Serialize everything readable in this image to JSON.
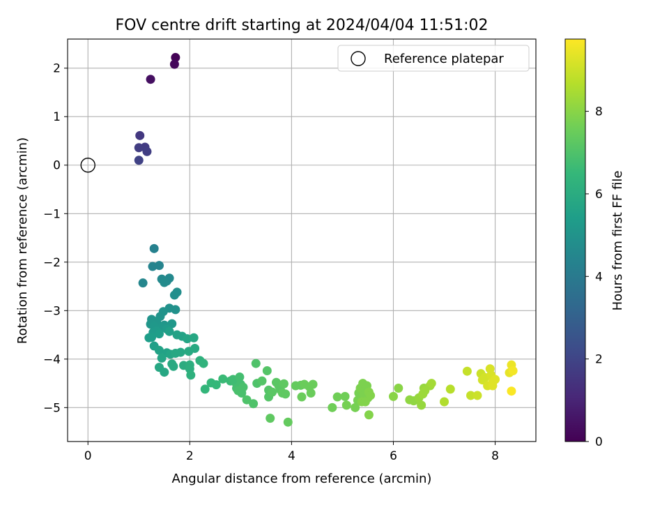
{
  "chart_data": {
    "type": "scatter",
    "title": "FOV centre drift starting at 2024/04/04 11:51:02",
    "xlabel": "Angular distance from reference (arcmin)",
    "ylabel": "Rotation from reference (arcmin)",
    "xlim": [
      -0.4,
      8.8
    ],
    "ylim": [
      -5.7,
      2.6
    ],
    "xticks": [
      0,
      2,
      4,
      6,
      8
    ],
    "xtick_labels": [
      "0",
      "2",
      "4",
      "6",
      "8"
    ],
    "yticks": [
      2,
      1,
      0,
      -1,
      -2,
      -3,
      -4,
      -5
    ],
    "ytick_labels": [
      "2",
      "1",
      "0",
      "−1",
      "−2",
      "−3",
      "−4",
      "−5"
    ],
    "grid": true,
    "legend": {
      "position": "top-right",
      "entries": [
        "Reference platepar"
      ]
    },
    "reference_point": {
      "x": 0,
      "y": 0,
      "label": "Reference platepar"
    },
    "colorbar": {
      "label": "Hours from first FF file",
      "range": [
        0,
        9.75
      ],
      "ticks": [
        0,
        2,
        4,
        6,
        8
      ],
      "tick_labels": [
        "0",
        "2",
        "4",
        "6",
        "8"
      ],
      "colormap": "viridis",
      "colors": [
        "#440154",
        "#482878",
        "#3e4a89",
        "#31688e",
        "#26828e",
        "#1f9e89",
        "#35b779",
        "#6ece58",
        "#b5de2b",
        "#fde725"
      ]
    },
    "points": [
      [
        1.72,
        2.22,
        0.05
      ],
      [
        1.7,
        2.08,
        0.2
      ],
      [
        1.23,
        1.77,
        0.4
      ],
      [
        1.02,
        0.61,
        1.6
      ],
      [
        1.12,
        0.37,
        1.7
      ],
      [
        1.0,
        0.36,
        1.75
      ],
      [
        1.16,
        0.28,
        1.8
      ],
      [
        1.0,
        0.1,
        1.9
      ],
      [
        1.3,
        -1.72,
        4.3
      ],
      [
        1.27,
        -2.09,
        4.4
      ],
      [
        1.4,
        -2.07,
        4.4
      ],
      [
        1.08,
        -2.43,
        4.5
      ],
      [
        1.6,
        -2.33,
        4.6
      ],
      [
        1.45,
        -2.35,
        4.6
      ],
      [
        1.55,
        -2.39,
        4.6
      ],
      [
        1.5,
        -2.42,
        4.7
      ],
      [
        1.75,
        -2.62,
        4.8
      ],
      [
        1.7,
        -2.68,
        4.8
      ],
      [
        1.6,
        -2.95,
        4.9
      ],
      [
        1.72,
        -2.98,
        4.9
      ],
      [
        1.48,
        -3.02,
        5.0
      ],
      [
        1.42,
        -3.12,
        5.0
      ],
      [
        1.25,
        -3.18,
        5.0
      ],
      [
        1.35,
        -3.22,
        5.1
      ],
      [
        1.23,
        -3.28,
        5.1
      ],
      [
        1.5,
        -3.3,
        5.1
      ],
      [
        1.3,
        -3.32,
        5.2
      ],
      [
        1.45,
        -3.35,
        5.2
      ],
      [
        1.65,
        -3.27,
        5.2
      ],
      [
        1.55,
        -3.38,
        5.3
      ],
      [
        1.35,
        -3.42,
        5.3
      ],
      [
        1.28,
        -3.45,
        5.3
      ],
      [
        1.4,
        -3.48,
        5.4
      ],
      [
        1.25,
        -3.55,
        5.4
      ],
      [
        1.2,
        -3.56,
        5.4
      ],
      [
        1.6,
        -3.43,
        5.5
      ],
      [
        1.75,
        -3.5,
        5.6
      ],
      [
        1.85,
        -3.53,
        5.6
      ],
      [
        1.95,
        -3.58,
        5.7
      ],
      [
        2.08,
        -3.56,
        5.8
      ],
      [
        1.3,
        -3.73,
        5.5
      ],
      [
        1.4,
        -3.82,
        5.6
      ],
      [
        1.55,
        -3.87,
        5.6
      ],
      [
        1.62,
        -3.9,
        5.7
      ],
      [
        1.72,
        -3.88,
        5.8
      ],
      [
        1.82,
        -3.86,
        5.8
      ],
      [
        1.98,
        -3.84,
        5.9
      ],
      [
        2.1,
        -3.78,
        5.9
      ],
      [
        1.45,
        -3.98,
        5.7
      ],
      [
        1.4,
        -4.17,
        5.8
      ],
      [
        1.5,
        -4.27,
        5.8
      ],
      [
        1.65,
        -4.1,
        5.9
      ],
      [
        1.68,
        -4.15,
        5.9
      ],
      [
        1.88,
        -4.13,
        6.0
      ],
      [
        2.0,
        -4.12,
        6.1
      ],
      [
        2.0,
        -4.2,
        6.1
      ],
      [
        2.02,
        -4.33,
        6.2
      ],
      [
        2.2,
        -4.03,
        6.2
      ],
      [
        2.27,
        -4.09,
        6.3
      ],
      [
        2.3,
        -4.62,
        6.4
      ],
      [
        2.42,
        -4.49,
        6.5
      ],
      [
        2.52,
        -4.53,
        6.5
      ],
      [
        2.65,
        -4.41,
        6.6
      ],
      [
        2.8,
        -4.45,
        6.6
      ],
      [
        2.85,
        -4.42,
        6.7
      ],
      [
        2.9,
        -4.48,
        6.7
      ],
      [
        2.95,
        -4.55,
        6.7
      ],
      [
        2.98,
        -4.37,
        6.8
      ],
      [
        3.0,
        -4.52,
        6.8
      ],
      [
        2.92,
        -4.6,
        6.8
      ],
      [
        2.95,
        -4.65,
        6.9
      ],
      [
        3.02,
        -4.7,
        6.9
      ],
      [
        3.05,
        -4.58,
        6.9
      ],
      [
        3.12,
        -4.84,
        7.0
      ],
      [
        3.25,
        -4.92,
        7.0
      ],
      [
        3.3,
        -4.09,
        7.0
      ],
      [
        3.32,
        -4.5,
        7.0
      ],
      [
        3.42,
        -4.45,
        7.1
      ],
      [
        3.52,
        -4.24,
        7.1
      ],
      [
        3.55,
        -4.64,
        7.1
      ],
      [
        3.55,
        -4.78,
        7.1
      ],
      [
        3.62,
        -4.68,
        7.2
      ],
      [
        3.7,
        -4.48,
        7.2
      ],
      [
        3.75,
        -4.55,
        7.2
      ],
      [
        3.78,
        -4.63,
        7.2
      ],
      [
        3.85,
        -4.51,
        7.3
      ],
      [
        3.82,
        -4.7,
        7.3
      ],
      [
        3.88,
        -4.72,
        7.3
      ],
      [
        3.58,
        -5.22,
        7.3
      ],
      [
        3.93,
        -5.3,
        7.4
      ],
      [
        4.08,
        -4.55,
        7.4
      ],
      [
        4.18,
        -4.54,
        7.4
      ],
      [
        4.25,
        -4.52,
        7.5
      ],
      [
        4.35,
        -4.57,
        7.5
      ],
      [
        4.42,
        -4.52,
        7.5
      ],
      [
        4.2,
        -4.78,
        7.5
      ],
      [
        4.38,
        -4.7,
        7.5
      ],
      [
        4.8,
        -5.0,
        7.6
      ],
      [
        4.9,
        -4.78,
        7.6
      ],
      [
        5.05,
        -4.77,
        7.6
      ],
      [
        5.08,
        -4.95,
        7.7
      ],
      [
        5.25,
        -5.0,
        7.7
      ],
      [
        5.3,
        -4.85,
        7.7
      ],
      [
        5.32,
        -4.7,
        7.7
      ],
      [
        5.35,
        -4.6,
        7.8
      ],
      [
        5.4,
        -4.5,
        7.8
      ],
      [
        5.42,
        -4.72,
        7.8
      ],
      [
        5.45,
        -4.62,
        7.8
      ],
      [
        5.48,
        -4.55,
        7.8
      ],
      [
        5.5,
        -4.8,
        7.8
      ],
      [
        5.52,
        -4.68,
        7.9
      ],
      [
        5.55,
        -4.75,
        7.9
      ],
      [
        5.38,
        -4.88,
        7.9
      ],
      [
        5.45,
        -4.88,
        7.9
      ],
      [
        5.52,
        -5.15,
        7.9
      ],
      [
        6.0,
        -4.77,
        8.0
      ],
      [
        6.1,
        -4.6,
        8.0
      ],
      [
        6.32,
        -4.84,
        8.1
      ],
      [
        6.4,
        -4.86,
        8.1
      ],
      [
        6.5,
        -4.8,
        8.2
      ],
      [
        6.55,
        -4.95,
        8.2
      ],
      [
        6.6,
        -4.6,
        8.2
      ],
      [
        6.58,
        -4.72,
        8.3
      ],
      [
        6.62,
        -4.65,
        8.3
      ],
      [
        6.72,
        -4.55,
        8.3
      ],
      [
        6.75,
        -4.5,
        8.4
      ],
      [
        7.0,
        -4.88,
        8.6
      ],
      [
        7.12,
        -4.62,
        8.7
      ],
      [
        7.45,
        -4.25,
        8.9
      ],
      [
        7.52,
        -4.75,
        8.9
      ],
      [
        7.65,
        -4.75,
        9.0
      ],
      [
        7.72,
        -4.3,
        9.0
      ],
      [
        7.75,
        -4.43,
        9.1
      ],
      [
        7.8,
        -4.38,
        9.1
      ],
      [
        7.85,
        -4.55,
        9.2
      ],
      [
        7.9,
        -4.2,
        9.2
      ],
      [
        7.92,
        -4.33,
        9.2
      ],
      [
        7.95,
        -4.48,
        9.3
      ],
      [
        8.0,
        -4.42,
        9.3
      ],
      [
        7.95,
        -4.55,
        9.3
      ],
      [
        8.28,
        -4.28,
        9.4
      ],
      [
        8.32,
        -4.12,
        9.5
      ],
      [
        8.35,
        -4.24,
        9.6
      ],
      [
        8.32,
        -4.66,
        9.7
      ]
    ]
  }
}
